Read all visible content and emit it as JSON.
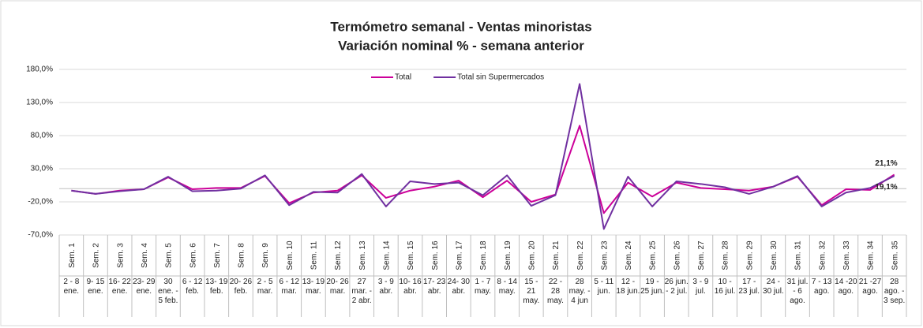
{
  "chart_data": {
    "type": "line",
    "title": "Termómetro semanal - Ventas minoristas",
    "subtitle": "Variación nominal % - semana anterior",
    "categories": [
      "Sem. 1",
      "Sem. 2",
      "Sem. 3",
      "Sem. 4",
      "Sem. 5",
      "Sem. 6",
      "Sem. 7",
      "Sem. 8",
      "Sem. 9",
      "Sem. 10",
      "Sem. 11",
      "Sem. 12",
      "Sem. 13",
      "Sem. 14",
      "Sem. 15",
      "Sem. 16",
      "Sem. 17",
      "Sem. 18",
      "Sem. 19",
      "Sem. 20",
      "Sem. 21",
      "Sem. 22",
      "Sem. 23",
      "Sem. 24",
      "Sem. 25",
      "Sem. 26",
      "Sem. 27",
      "Sem. 28",
      "Sem. 29",
      "Sem. 30",
      "Sem. 31",
      "Sem. 32",
      "Sem. 33",
      "Sem. 34",
      "Sem. 35"
    ],
    "category_dates": [
      "2 - 8 ene.",
      "9- 15 ene.",
      "16- 22 ene.",
      "23- 29 ene.",
      "30 ene. - 5 feb.",
      "6 - 12 feb.",
      "13- 19 feb.",
      "20- 26 feb.",
      "2 - 5 mar.",
      "6 - 12 mar.",
      "13- 19 mar.",
      "20- 26 mar.",
      "27 mar. - 2 abr.",
      "3 - 9 abr.",
      "10- 16 abr.",
      "17- 23 abr.",
      "24- 30 abr.",
      "1 - 7 may.",
      "8 - 14 may.",
      "15 - 21 may.",
      "22 - 28 may.",
      "28 may. - 4 jun",
      "5 - 11 jun.",
      "12 - 18 jun.",
      "19 - 25 jun.",
      "26 jun. - 2 jul.",
      "3 - 9 jul.",
      "10 - 16 jul.",
      "17 - 23 jul.",
      "24 - 30 jul.",
      "31 jul. - 6 ago.",
      "7 - 13 ago.",
      "14 -20 ago.",
      "21 -27 ago.",
      "28 ago. - 3 sep."
    ],
    "series": [
      {
        "name": "Total",
        "color": "#cc0099",
        "values": [
          -3,
          -8,
          -3,
          -1,
          17,
          -1,
          1,
          1,
          19,
          -22,
          -6,
          -3,
          20,
          -14,
          -3,
          3,
          12,
          -13,
          12,
          -20,
          -9,
          95,
          -37,
          9,
          -12,
          9,
          1,
          -1,
          -3,
          3,
          18,
          -25,
          -1,
          -2,
          21.1
        ],
        "value_labels": [
          null,
          null,
          null,
          null,
          null,
          null,
          null,
          null,
          null,
          null,
          null,
          null,
          null,
          null,
          null,
          null,
          null,
          null,
          null,
          null,
          null,
          null,
          null,
          null,
          null,
          null,
          null,
          null,
          null,
          null,
          null,
          null,
          null,
          null,
          "21,1%"
        ]
      },
      {
        "name": "Total sin Supermercados",
        "color": "#7030a0",
        "values": [
          -3,
          -8,
          -4,
          -1,
          18,
          -4,
          -3,
          0,
          20,
          -25,
          -5,
          -6,
          22,
          -27,
          11,
          7,
          9,
          -10,
          20,
          -26,
          -10,
          158,
          -61,
          18,
          -27,
          11,
          7,
          2,
          -8,
          3,
          19,
          -27,
          -6,
          1,
          19.1
        ],
        "value_labels": [
          null,
          null,
          null,
          null,
          null,
          null,
          null,
          null,
          null,
          null,
          null,
          null,
          null,
          null,
          null,
          null,
          null,
          null,
          null,
          null,
          null,
          null,
          null,
          null,
          null,
          null,
          null,
          null,
          null,
          null,
          null,
          null,
          null,
          null,
          "19,1%"
        ]
      }
    ],
    "ylim": [
      -70,
      180
    ],
    "yticks": [
      {
        "value": -70,
        "label": "-70,0%"
      },
      {
        "value": -20,
        "label": "-20,0%"
      },
      {
        "value": 30,
        "label": "30,0%"
      },
      {
        "value": 80,
        "label": "80,0%"
      },
      {
        "value": 130,
        "label": "130,0%"
      },
      {
        "value": 180,
        "label": "180,0%"
      }
    ],
    "legend": "top"
  }
}
